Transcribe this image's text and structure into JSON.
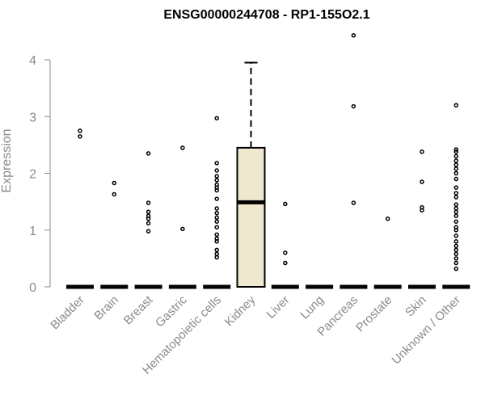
{
  "chart_data": {
    "type": "boxplot",
    "title": "ENSG00000244708 - RP1-155O2.1",
    "xlabel": "",
    "ylabel": "Expression",
    "ylim": [
      0,
      4.3
    ],
    "yticks": [
      0,
      1,
      2,
      3,
      4
    ],
    "box_color": "#EFE8CF",
    "categories": [
      {
        "name": "Bladder",
        "box": [
          0,
          0,
          0,
          0,
          0
        ],
        "outliers": [
          2.65,
          2.75
        ]
      },
      {
        "name": "Brain",
        "box": [
          0,
          0,
          0,
          0,
          0
        ],
        "outliers": [
          1.63,
          1.83
        ]
      },
      {
        "name": "Breast",
        "box": [
          0,
          0,
          0,
          0,
          0
        ],
        "outliers": [
          0.98,
          1.12,
          1.2,
          1.25,
          1.32,
          1.48,
          2.35
        ]
      },
      {
        "name": "Gastric",
        "box": [
          0,
          0,
          0,
          0,
          0
        ],
        "outliers": [
          1.02,
          2.45
        ]
      },
      {
        "name": "Hematopoietic cells",
        "box": [
          0,
          0,
          0,
          0,
          0
        ],
        "outliers": [
          0.52,
          0.58,
          0.65,
          0.8,
          0.85,
          0.92,
          1.05,
          1.15,
          1.22,
          1.3,
          1.38,
          1.55,
          1.7,
          1.75,
          1.8,
          1.88,
          1.95,
          2.05,
          2.18,
          2.97
        ]
      },
      {
        "name": "Kidney",
        "box": [
          0,
          0,
          1.49,
          2.45,
          3.95
        ],
        "outliers": []
      },
      {
        "name": "Liver",
        "box": [
          0,
          0,
          0,
          0,
          0
        ],
        "outliers": [
          0.42,
          0.6,
          1.46
        ]
      },
      {
        "name": "Lung",
        "box": [
          0,
          0,
          0,
          0,
          0
        ],
        "outliers": []
      },
      {
        "name": "Pancreas",
        "box": [
          0,
          0,
          0,
          0,
          0
        ],
        "outliers": [
          1.48,
          3.18,
          4.43
        ]
      },
      {
        "name": "Prostate",
        "box": [
          0,
          0,
          0,
          0,
          0
        ],
        "outliers": [
          1.2
        ]
      },
      {
        "name": "Skin",
        "box": [
          0,
          0,
          0,
          0,
          0
        ],
        "outliers": [
          1.35,
          1.4,
          1.85,
          2.38
        ]
      },
      {
        "name": "Unknown / Other",
        "box": [
          0,
          0,
          0,
          0,
          0
        ],
        "outliers": [
          0.32,
          0.42,
          0.5,
          0.58,
          0.65,
          0.72,
          0.8,
          0.9,
          1.0,
          1.05,
          1.15,
          1.25,
          1.32,
          1.38,
          1.45,
          1.58,
          1.65,
          1.75,
          1.9,
          2.0,
          2.08,
          2.15,
          2.22,
          2.3,
          2.38,
          2.42,
          3.2
        ]
      }
    ]
  }
}
